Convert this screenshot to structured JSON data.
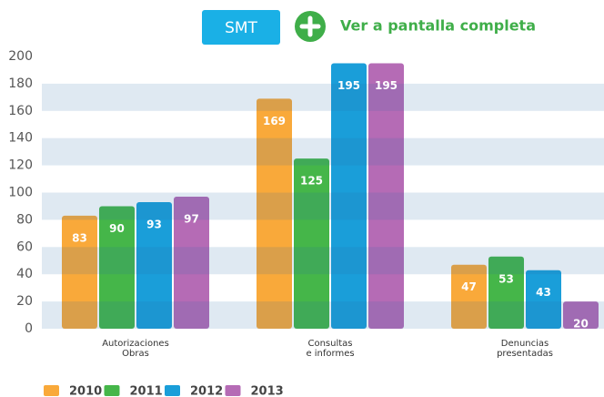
{
  "toolbar": {
    "button": "SMT",
    "link": "Ver a pantalla completa"
  },
  "chart_data": {
    "type": "bar",
    "categories": [
      [
        "Autorizaciones",
        "Obras"
      ],
      [
        "Consultas",
        "e informes"
      ],
      [
        "Denuncias",
        "presentadas"
      ]
    ],
    "series": [
      {
        "name": "2010",
        "color": "#f9a93a",
        "values": [
          83,
          169,
          47
        ]
      },
      {
        "name": "2011",
        "color": "#45b649",
        "values": [
          90,
          125,
          53
        ]
      },
      {
        "name": "2012",
        "color": "#1a9ed9",
        "values": [
          93,
          195,
          43
        ]
      },
      {
        "name": "2013",
        "color": "#b56bb5",
        "values": [
          97,
          195,
          20
        ]
      }
    ],
    "ylim": [
      0,
      200
    ],
    "yticks": [
      0,
      20,
      40,
      60,
      80,
      100,
      120,
      140,
      160,
      180,
      200
    ],
    "grid": "bands",
    "legend": "bottom-left"
  }
}
